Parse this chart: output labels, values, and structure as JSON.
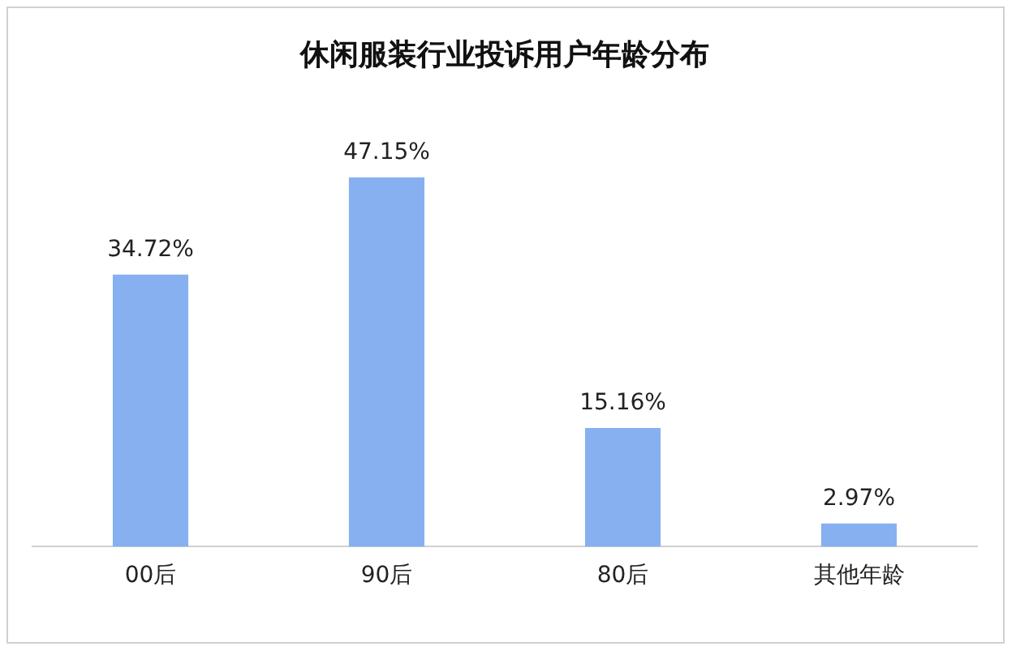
{
  "chart_data": {
    "type": "bar",
    "title": "休闲服装行业投诉用户年龄分布",
    "categories": [
      "00后",
      "90后",
      "80后",
      "其他年龄"
    ],
    "values": [
      34.72,
      47.15,
      15.16,
      2.97
    ],
    "value_labels": [
      "34.72%",
      "47.15%",
      "15.16%",
      "2.97%"
    ],
    "color": "#86b0f0",
    "grid": false,
    "legend": false
  }
}
